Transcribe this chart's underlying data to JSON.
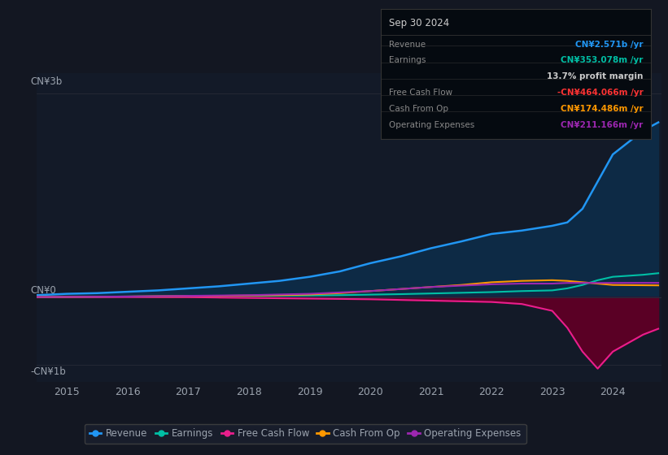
{
  "bg_color": "#131722",
  "plot_bg_color": "#131a28",
  "text_color": "#9ba3ae",
  "grid_color": "#2a2e3a",
  "years": [
    2014.5,
    2015,
    2015.5,
    2016,
    2016.5,
    2017,
    2017.5,
    2018,
    2018.5,
    2019,
    2019.5,
    2020,
    2020.5,
    2021,
    2021.5,
    2022,
    2022.5,
    2023,
    2023.25,
    2023.5,
    2023.75,
    2024,
    2024.5,
    2024.75
  ],
  "revenue": [
    0.03,
    0.05,
    0.06,
    0.08,
    0.1,
    0.13,
    0.16,
    0.2,
    0.24,
    0.3,
    0.38,
    0.5,
    0.6,
    0.72,
    0.82,
    0.93,
    0.98,
    1.05,
    1.1,
    1.3,
    1.7,
    2.1,
    2.45,
    2.571
  ],
  "earnings": [
    0.002,
    0.005,
    0.007,
    0.01,
    0.012,
    0.015,
    0.018,
    0.02,
    0.022,
    0.025,
    0.03,
    0.038,
    0.045,
    0.055,
    0.065,
    0.075,
    0.09,
    0.1,
    0.13,
    0.18,
    0.25,
    0.3,
    0.33,
    0.353
  ],
  "free_cash_flow": [
    0.002,
    0.002,
    0.002,
    0.002,
    0.001,
    0.001,
    -0.005,
    -0.01,
    -0.015,
    -0.02,
    -0.025,
    -0.03,
    -0.04,
    -0.05,
    -0.06,
    -0.07,
    -0.1,
    -0.2,
    -0.45,
    -0.8,
    -1.05,
    -0.8,
    -0.55,
    -0.464
  ],
  "cash_from_op": [
    0.002,
    0.005,
    0.008,
    0.01,
    0.015,
    0.02,
    0.02,
    0.025,
    0.03,
    0.04,
    0.06,
    0.09,
    0.12,
    0.15,
    0.18,
    0.22,
    0.24,
    0.25,
    0.24,
    0.22,
    0.2,
    0.18,
    0.176,
    0.174
  ],
  "operating_expenses": [
    0.002,
    0.005,
    0.007,
    0.01,
    0.015,
    0.02,
    0.025,
    0.03,
    0.04,
    0.05,
    0.07,
    0.09,
    0.12,
    0.15,
    0.17,
    0.19,
    0.2,
    0.2,
    0.21,
    0.21,
    0.21,
    0.21,
    0.211,
    0.211
  ],
  "revenue_color": "#2196f3",
  "earnings_color": "#00bfa5",
  "fcf_color": "#e91e8c",
  "cashop_color": "#ff9800",
  "opex_color": "#9c27b0",
  "fcf_fill_color": "#5a0025",
  "revenue_fill_color": "#0d2a45",
  "ylim": [
    -1.25,
    3.3
  ],
  "xticks": [
    2015,
    2016,
    2017,
    2018,
    2019,
    2020,
    2021,
    2022,
    2023,
    2024
  ],
  "y_label_3b_pos": 3.0,
  "y_label_0_pos": 0.0,
  "y_label_neg1b_pos": -1.0,
  "tooltip_bg": "#050a10",
  "tooltip_border": "#333333",
  "tooltip_title": "Sep 30 2024",
  "tooltip_title_color": "#cccccc",
  "tooltip_rows": [
    {
      "label": "Revenue",
      "value": "CN¥2.571b /yr",
      "value_color": "#2196f3",
      "label_color": "#888888"
    },
    {
      "label": "Earnings",
      "value": "CN¥353.078m /yr",
      "value_color": "#00bfa5",
      "label_color": "#888888"
    },
    {
      "label": "",
      "value": "13.7% profit margin",
      "value_color": "#cccccc",
      "label_color": "#888888"
    },
    {
      "label": "Free Cash Flow",
      "value": "-CN¥464.066m /yr",
      "value_color": "#ff3333",
      "label_color": "#888888"
    },
    {
      "label": "Cash From Op",
      "value": "CN¥174.486m /yr",
      "value_color": "#ff9800",
      "label_color": "#888888"
    },
    {
      "label": "Operating Expenses",
      "value": "CN¥211.166m /yr",
      "value_color": "#9c27b0",
      "label_color": "#888888"
    }
  ],
  "legend_items": [
    {
      "label": "Revenue",
      "color": "#2196f3"
    },
    {
      "label": "Earnings",
      "color": "#00bfa5"
    },
    {
      "label": "Free Cash Flow",
      "color": "#e91e8c"
    },
    {
      "label": "Cash From Op",
      "color": "#ff9800"
    },
    {
      "label": "Operating Expenses",
      "color": "#9c27b0"
    }
  ]
}
